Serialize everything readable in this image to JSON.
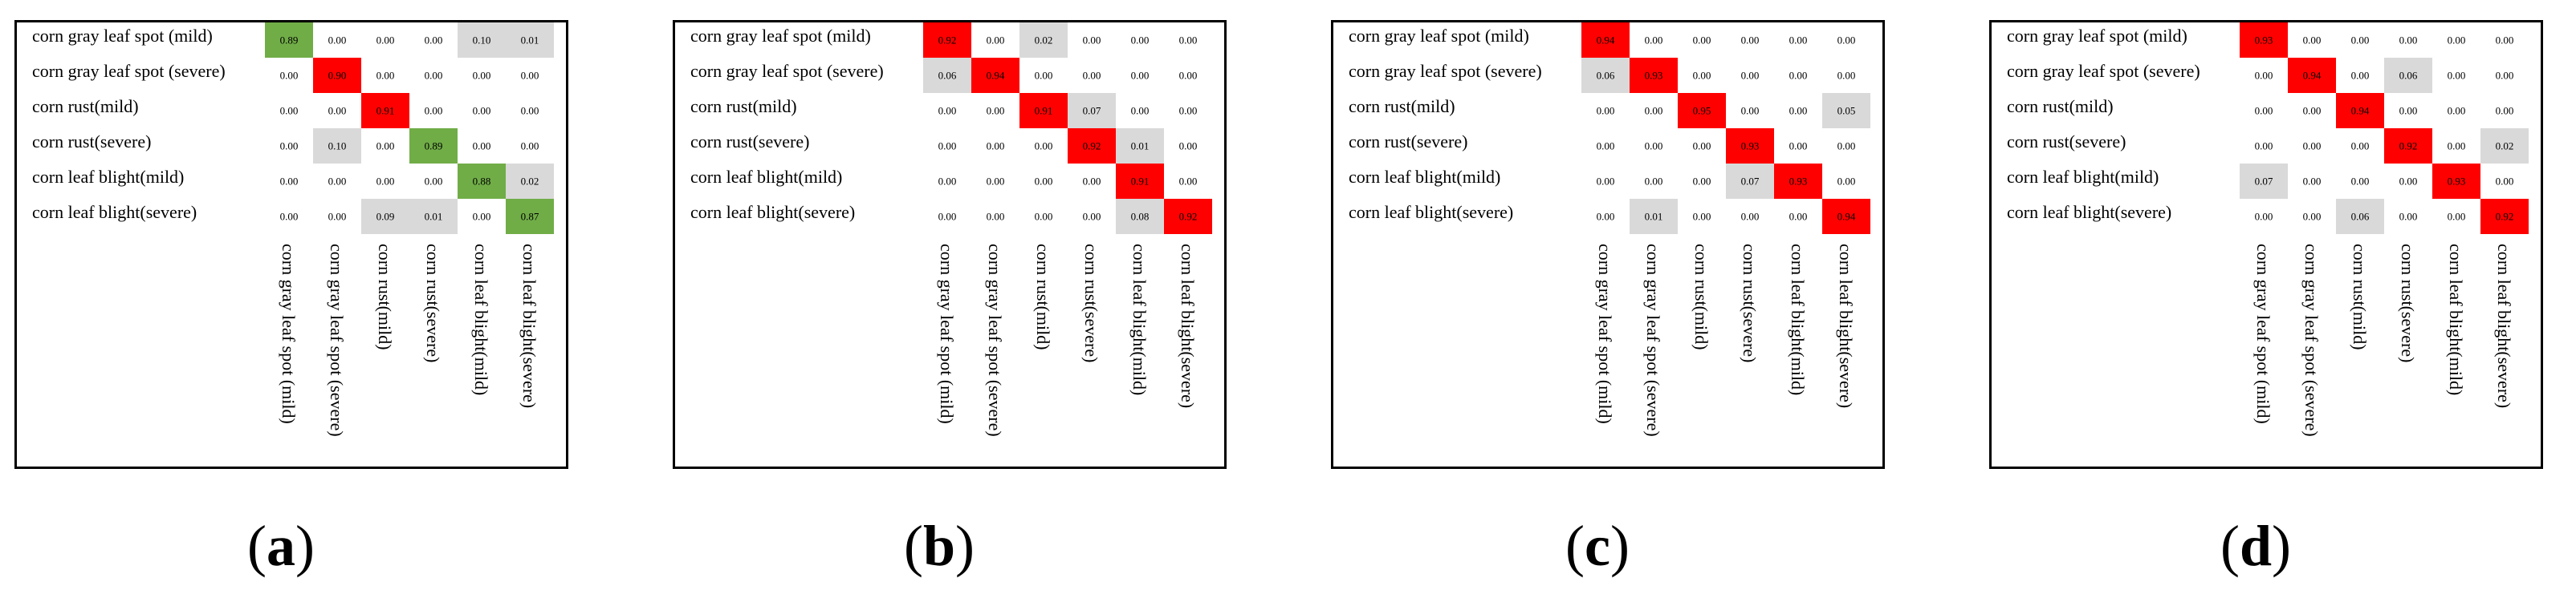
{
  "colors": {
    "diagonal_a": "#70ad47",
    "diagonal_bcd": "#ff0000",
    "offdiag_nonzero": "#d9d9d9",
    "border": "#000000"
  },
  "chart_data": [
    {
      "type": "heatmap",
      "panel": "a",
      "rows": [
        "corn gray leaf spot (mild)",
        "corn gray leaf spot (severe)",
        "corn rust(mild)",
        "corn rust(severe)",
        "corn leaf blight(mild)",
        "corn leaf blight(severe)"
      ],
      "columns": [
        "corn gray leaf spot (mild)",
        "corn gray leaf spot (severe)",
        "corn rust(mild)",
        "corn rust(severe)",
        "corn leaf blight(mild)",
        "corn leaf blight(severe)"
      ],
      "values": [
        [
          "0.89",
          "0.00",
          "0.00",
          "0.00",
          "0.10",
          "0.01"
        ],
        [
          "0.00",
          "0.90",
          "0.00",
          "0.00",
          "0.00",
          "0.00"
        ],
        [
          "0.00",
          "0.00",
          "0.91",
          "0.00",
          "0.00",
          "0.00"
        ],
        [
          "0.00",
          "0.10",
          "0.00",
          "0.89",
          "0.00",
          "0.00"
        ],
        [
          "0.00",
          "0.00",
          "0.00",
          "0.00",
          "0.88",
          "0.02"
        ],
        [
          "0.00",
          "0.00",
          "0.09",
          "0.01",
          "0.00",
          "0.87"
        ]
      ],
      "diag_colors": [
        "#70ad47",
        "#ff0000",
        "#ff0000",
        "#70ad47",
        "#70ad47",
        "#70ad47"
      ]
    },
    {
      "type": "heatmap",
      "panel": "b",
      "rows": [
        "corn gray leaf spot (mild)",
        "corn gray leaf spot (severe)",
        "corn rust(mild)",
        "corn rust(severe)",
        "corn leaf blight(mild)",
        "corn leaf blight(severe)"
      ],
      "columns": [
        "corn gray leaf spot (mild)",
        "corn gray leaf spot (severe)",
        "corn rust(mild)",
        "corn rust(severe)",
        "corn leaf blight(mild)",
        "corn leaf blight(severe)"
      ],
      "values": [
        [
          "0.92",
          "0.00",
          "0.02",
          "0.00",
          "0.00",
          "0.00"
        ],
        [
          "0.06",
          "0.94",
          "0.00",
          "0.00",
          "0.00",
          "0.00"
        ],
        [
          "0.00",
          "0.00",
          "0.91",
          "0.07",
          "0.00",
          "0.00"
        ],
        [
          "0.00",
          "0.00",
          "0.00",
          "0.92",
          "0.01",
          "0.00"
        ],
        [
          "0.00",
          "0.00",
          "0.00",
          "0.00",
          "0.91",
          "0.00"
        ],
        [
          "0.00",
          "0.00",
          "0.00",
          "0.00",
          "0.08",
          "0.92"
        ]
      ],
      "diag_colors": [
        "#ff0000",
        "#ff0000",
        "#ff0000",
        "#ff0000",
        "#ff0000",
        "#ff0000"
      ]
    },
    {
      "type": "heatmap",
      "panel": "c",
      "rows": [
        "corn gray leaf spot (mild)",
        "corn gray leaf spot (severe)",
        "corn rust(mild)",
        "corn rust(severe)",
        "corn leaf blight(mild)",
        "corn leaf blight(severe)"
      ],
      "columns": [
        "corn gray leaf spot (mild)",
        "corn gray leaf spot (severe)",
        "corn rust(mild)",
        "corn rust(severe)",
        "corn leaf blight(mild)",
        "corn leaf blight(severe)"
      ],
      "values": [
        [
          "0.94",
          "0.00",
          "0.00",
          "0.00",
          "0.00",
          "0.00"
        ],
        [
          "0.06",
          "0.93",
          "0.00",
          "0.00",
          "0.00",
          "0.00"
        ],
        [
          "0.00",
          "0.00",
          "0.95",
          "0.00",
          "0.00",
          "0.05"
        ],
        [
          "0.00",
          "0.00",
          "0.00",
          "0.93",
          "0.00",
          "0.00"
        ],
        [
          "0.00",
          "0.00",
          "0.00",
          "0.07",
          "0.93",
          "0.00"
        ],
        [
          "0.00",
          "0.01",
          "0.00",
          "0.00",
          "0.00",
          "0.94"
        ]
      ],
      "diag_colors": [
        "#ff0000",
        "#ff0000",
        "#ff0000",
        "#ff0000",
        "#ff0000",
        "#ff0000"
      ]
    },
    {
      "type": "heatmap",
      "panel": "d",
      "rows": [
        "corn gray leaf spot (mild)",
        "corn gray leaf spot (severe)",
        "corn rust(mild)",
        "corn rust(severe)",
        "corn leaf blight(mild)",
        "corn leaf blight(severe)"
      ],
      "columns": [
        "corn gray leaf spot (mild)",
        "corn gray leaf spot (severe)",
        "corn rust(mild)",
        "corn rust(severe)",
        "corn leaf blight(mild)",
        "corn leaf blight(severe)"
      ],
      "values": [
        [
          "0.93",
          "0.00",
          "0.00",
          "0.00",
          "0.00",
          "0.00"
        ],
        [
          "0.00",
          "0.94",
          "0.00",
          "0.06",
          "0.00",
          "0.00"
        ],
        [
          "0.00",
          "0.00",
          "0.94",
          "0.00",
          "0.00",
          "0.00"
        ],
        [
          "0.00",
          "0.00",
          "0.00",
          "0.92",
          "0.00",
          "0.02"
        ],
        [
          "0.07",
          "0.00",
          "0.00",
          "0.00",
          "0.93",
          "0.00"
        ],
        [
          "0.00",
          "0.00",
          "0.06",
          "0.00",
          "0.00",
          "0.92"
        ]
      ],
      "diag_colors": [
        "#ff0000",
        "#ff0000",
        "#ff0000",
        "#ff0000",
        "#ff0000",
        "#ff0000"
      ]
    }
  ],
  "captions": {
    "a": "a",
    "b": "b",
    "c": "c",
    "d": "d"
  }
}
